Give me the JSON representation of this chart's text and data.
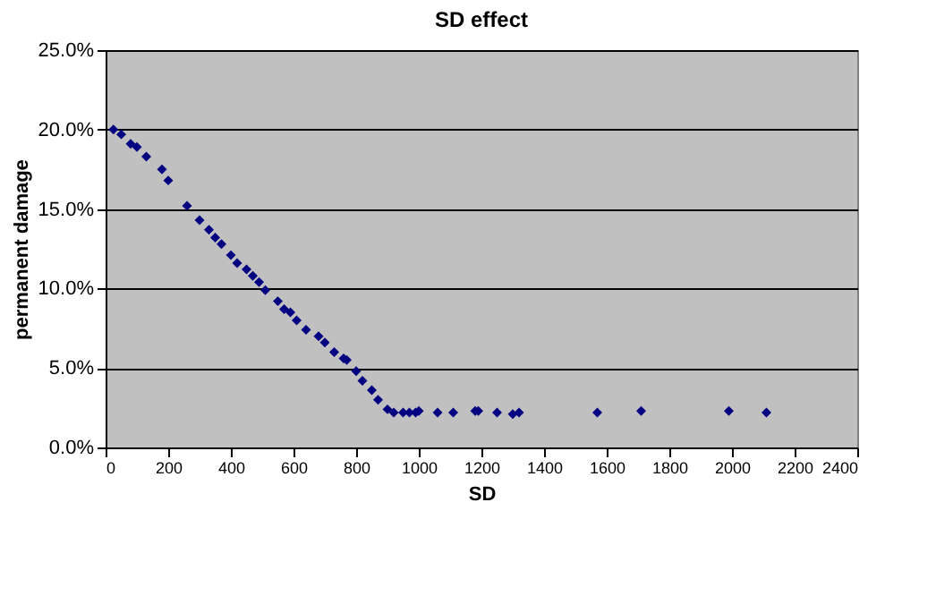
{
  "chart_data": {
    "type": "scatter",
    "title": "SD effect",
    "xlabel": "SD",
    "ylabel": "permanent damage",
    "x": [
      25,
      50,
      80,
      100,
      130,
      180,
      200,
      260,
      300,
      330,
      350,
      370,
      400,
      420,
      450,
      470,
      490,
      510,
      550,
      570,
      590,
      610,
      640,
      680,
      700,
      730,
      760,
      770,
      800,
      820,
      850,
      870,
      900,
      920,
      950,
      970,
      990,
      1000,
      1060,
      1110,
      1180,
      1190,
      1250,
      1300,
      1320,
      1570,
      1710,
      1990,
      2110
    ],
    "series": [
      {
        "color": "#000080",
        "values": [
          20.0,
          19.7,
          19.1,
          18.9,
          18.3,
          17.5,
          16.8,
          15.2,
          14.3,
          13.7,
          13.2,
          12.8,
          12.1,
          11.6,
          11.2,
          10.8,
          10.4,
          9.9,
          9.2,
          8.7,
          8.5,
          8.0,
          7.4,
          7.0,
          6.6,
          6.0,
          5.6,
          5.5,
          4.8,
          4.2,
          3.6,
          3.0,
          2.4,
          2.2,
          2.2,
          2.2,
          2.2,
          2.3,
          2.2,
          2.2,
          2.3,
          2.3,
          2.2,
          2.1,
          2.2,
          2.2,
          2.3,
          2.3,
          2.2
        ]
      }
    ],
    "xlim": [
      0,
      2400
    ],
    "xticks": [
      0,
      200,
      400,
      600,
      800,
      1000,
      1200,
      1400,
      1600,
      1800,
      2000,
      2200,
      2400
    ],
    "ylim": [
      0,
      25
    ],
    "yticks": [
      {
        "value": 0,
        "label": "0.0%"
      },
      {
        "value": 5,
        "label": "5.0%"
      },
      {
        "value": 10,
        "label": "10.0%"
      },
      {
        "value": 15,
        "label": "15.0%"
      },
      {
        "value": 20,
        "label": "20.0%"
      },
      {
        "value": 25,
        "label": "25.0%"
      }
    ],
    "grid": "y",
    "marker": "diamond"
  }
}
